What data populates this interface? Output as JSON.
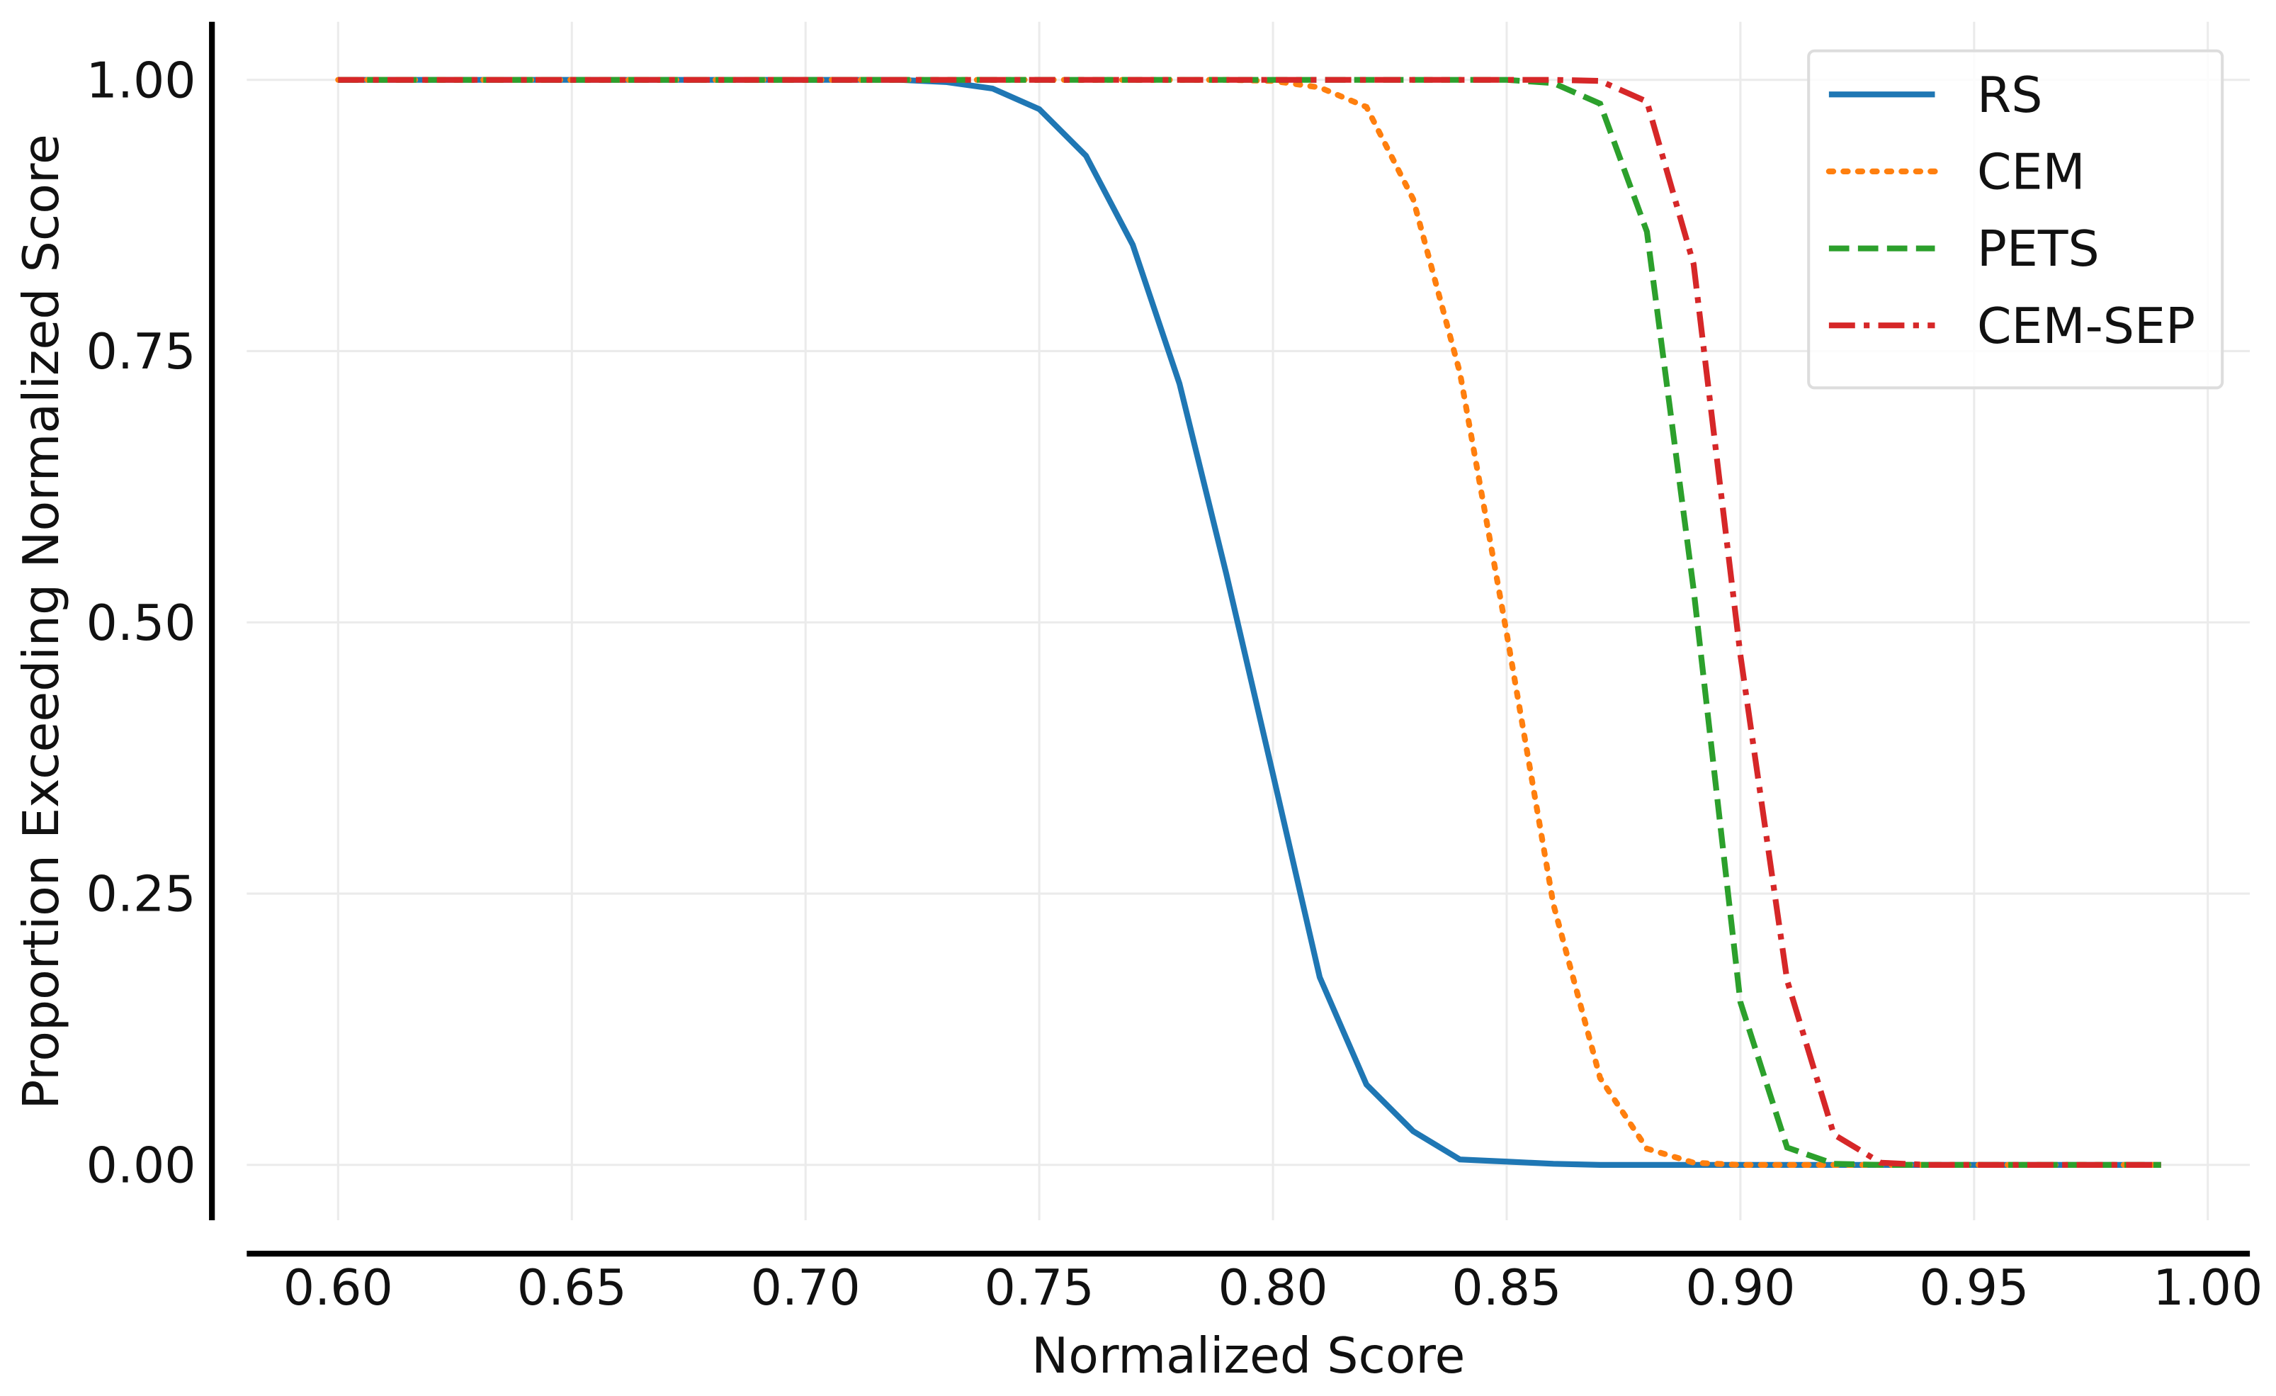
{
  "chart_data": {
    "type": "line",
    "x_label": "Normalized Score",
    "y_label": "Proportion Exceeding Normalized Score",
    "x": [
      0.6,
      0.61,
      0.62,
      0.63,
      0.64,
      0.65,
      0.66,
      0.67,
      0.68,
      0.69,
      0.7,
      0.71,
      0.72,
      0.73,
      0.74,
      0.75,
      0.76,
      0.77,
      0.78,
      0.79,
      0.8,
      0.81,
      0.82,
      0.83,
      0.84,
      0.85,
      0.86,
      0.87,
      0.88,
      0.89,
      0.9,
      0.91,
      0.92,
      0.93,
      0.94,
      0.95,
      0.96,
      0.97,
      0.98,
      0.99
    ],
    "series": [
      {
        "name": "RS",
        "color": "#1f77b4",
        "linestyle": "solid",
        "values": [
          1,
          1,
          1,
          1,
          1,
          1,
          1,
          1,
          1,
          1,
          1,
          1,
          1,
          0.998,
          0.992,
          0.973,
          0.93,
          0.848,
          0.72,
          0.545,
          0.36,
          0.173,
          0.074,
          0.031,
          0.005,
          0.003,
          0.001,
          0,
          0,
          0,
          0,
          0,
          0,
          0,
          0,
          0,
          0,
          0,
          0,
          0
        ]
      },
      {
        "name": "CEM",
        "color": "#ff7f0e",
        "linestyle": "dotted",
        "values": [
          1,
          1,
          1,
          1,
          1,
          1,
          1,
          1,
          1,
          1,
          1,
          1,
          1,
          1,
          1,
          1,
          1,
          1,
          1,
          1,
          0.999,
          0.993,
          0.975,
          0.89,
          0.73,
          0.49,
          0.24,
          0.08,
          0.015,
          0.002,
          0,
          0,
          0,
          0,
          0,
          0,
          0,
          0,
          0,
          0
        ]
      },
      {
        "name": "PETS",
        "color": "#2ca02c",
        "linestyle": "dashed",
        "values": [
          1,
          1,
          1,
          1,
          1,
          1,
          1,
          1,
          1,
          1,
          1,
          1,
          1,
          1,
          1,
          1,
          1,
          1,
          1,
          1,
          1,
          1,
          1,
          1,
          1,
          1,
          0.997,
          0.978,
          0.86,
          0.53,
          0.15,
          0.016,
          0.001,
          0,
          0,
          0,
          0,
          0,
          0,
          0
        ]
      },
      {
        "name": "CEM-SEP",
        "color": "#d62728",
        "linestyle": "dashdot",
        "values": [
          1,
          1,
          1,
          1,
          1,
          1,
          1,
          1,
          1,
          1,
          1,
          1,
          1,
          1,
          1,
          1,
          1,
          1,
          1,
          1,
          1,
          1,
          1,
          1,
          1,
          1,
          1,
          0.999,
          0.98,
          0.83,
          0.47,
          0.17,
          0.028,
          0.002,
          0,
          0,
          0,
          0,
          0,
          0
        ]
      }
    ],
    "xlim": [
      0.573,
      1.009
    ],
    "ylim": [
      -0.051,
      1.0535
    ],
    "xticks": [
      {
        "value": 0.6,
        "label": "0.60"
      },
      0.65,
      {
        "value": 0.7,
        "label": "0.70"
      },
      0.75,
      {
        "value": 0.8,
        "label": "0.80"
      },
      0.85,
      {
        "value": 0.9,
        "label": "0.90"
      },
      0.95,
      {
        "value": 1,
        "label": "1.00"
      }
    ],
    "yticks": [
      {
        "value": 0,
        "label": "0.00"
      },
      0.25,
      {
        "value": 0.5,
        "label": "0.50"
      },
      0.75,
      {
        "value": 1,
        "label": "1.00"
      }
    ],
    "grid": true,
    "legend": "upper right"
  }
}
